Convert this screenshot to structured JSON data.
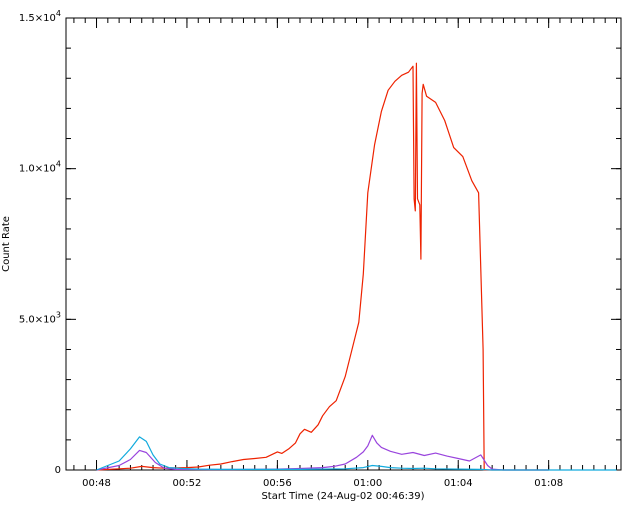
{
  "chart_data": {
    "type": "line",
    "xlabel": "Start Time (24-Aug-02 00:46:39)",
    "ylabel": "Count Rate",
    "xlim": [
      46.65,
      71.2
    ],
    "ylim": [
      0,
      15000
    ],
    "x_ticks": [
      {
        "value": 48,
        "label": "00:48"
      },
      {
        "value": 52,
        "label": "00:52"
      },
      {
        "value": 56,
        "label": "00:56"
      },
      {
        "value": 60,
        "label": "01:00"
      },
      {
        "value": 64,
        "label": "01:04"
      },
      {
        "value": 68,
        "label": "01:08"
      }
    ],
    "x_minor_step": 0.5,
    "y_ticks": [
      {
        "value": 0,
        "mantissa": "0",
        "exp": ""
      },
      {
        "value": 5000,
        "mantissa": "5.0×10",
        "exp": "3"
      },
      {
        "value": 10000,
        "mantissa": "1.0×10",
        "exp": "4"
      },
      {
        "value": 15000,
        "mantissa": "1.5×10",
        "exp": "4"
      }
    ],
    "y_minor_step": 1000,
    "grid": false,
    "series": [
      {
        "color": "#ee2200",
        "x": [
          48.0,
          49.0,
          49.5,
          50.0,
          50.5,
          51.0,
          51.5,
          52.0,
          52.5,
          53.0,
          53.5,
          54.0,
          54.5,
          55.0,
          55.5,
          56.0,
          56.2,
          56.5,
          56.8,
          57.0,
          57.2,
          57.5,
          57.8,
          58.0,
          58.3,
          58.6,
          59.0,
          59.3,
          59.6,
          59.8,
          60.0,
          60.3,
          60.6,
          60.9,
          61.2,
          61.5,
          61.8,
          62.0,
          62.05,
          62.1,
          62.15,
          62.2,
          62.3,
          62.35,
          62.4,
          62.45,
          62.6,
          63.0,
          63.4,
          63.8,
          64.2,
          64.6,
          64.9,
          65.1,
          65.15,
          65.3,
          65.5,
          66.0,
          67.0,
          68.0
        ],
        "y": [
          0,
          40,
          60,
          120,
          80,
          60,
          70,
          80,
          100,
          160,
          200,
          280,
          350,
          380,
          420,
          600,
          550,
          700,
          900,
          1200,
          1350,
          1250,
          1500,
          1800,
          2100,
          2300,
          3100,
          4000,
          4900,
          6500,
          9200,
          10800,
          11900,
          12600,
          12900,
          13100,
          13200,
          13400,
          9000,
          8600,
          13500,
          9000,
          8800,
          7000,
          12500,
          12800,
          12400,
          12200,
          11600,
          10700,
          10400,
          9600,
          9200,
          4000,
          0,
          0,
          0,
          0,
          0,
          0
        ]
      },
      {
        "color": "#9944dd",
        "x": [
          48.0,
          49.0,
          49.5,
          49.9,
          50.2,
          50.6,
          51.0,
          51.5,
          52.0,
          53.0,
          54.0,
          55.0,
          56.0,
          57.0,
          58.0,
          58.5,
          59.0,
          59.5,
          59.8,
          60.0,
          60.2,
          60.4,
          60.6,
          61.0,
          61.5,
          62.0,
          62.5,
          63.0,
          63.5,
          64.0,
          64.5,
          65.0,
          65.3,
          65.5,
          66.0,
          67.0,
          68.0
        ],
        "y": [
          0,
          150,
          350,
          650,
          580,
          250,
          60,
          20,
          20,
          15,
          15,
          20,
          30,
          50,
          80,
          120,
          200,
          420,
          600,
          800,
          1150,
          900,
          750,
          620,
          520,
          580,
          480,
          560,
          460,
          380,
          300,
          500,
          150,
          30,
          0,
          0,
          0
        ]
      },
      {
        "color": "#11aadd",
        "x": [
          48.0,
          49.0,
          49.5,
          49.9,
          50.2,
          50.5,
          50.8,
          51.2,
          51.8,
          52.5,
          53.5,
          55.0,
          57.0,
          59.0,
          59.8,
          60.2,
          60.6,
          61.0,
          61.5,
          62.0,
          62.5,
          63.0,
          64.0,
          65.0,
          65.5,
          66.0,
          68.0,
          71.0
        ],
        "y": [
          0,
          300,
          700,
          1100,
          950,
          500,
          200,
          80,
          50,
          30,
          20,
          20,
          20,
          40,
          80,
          150,
          120,
          80,
          60,
          50,
          60,
          40,
          30,
          20,
          0,
          0,
          0,
          0
        ]
      }
    ]
  }
}
